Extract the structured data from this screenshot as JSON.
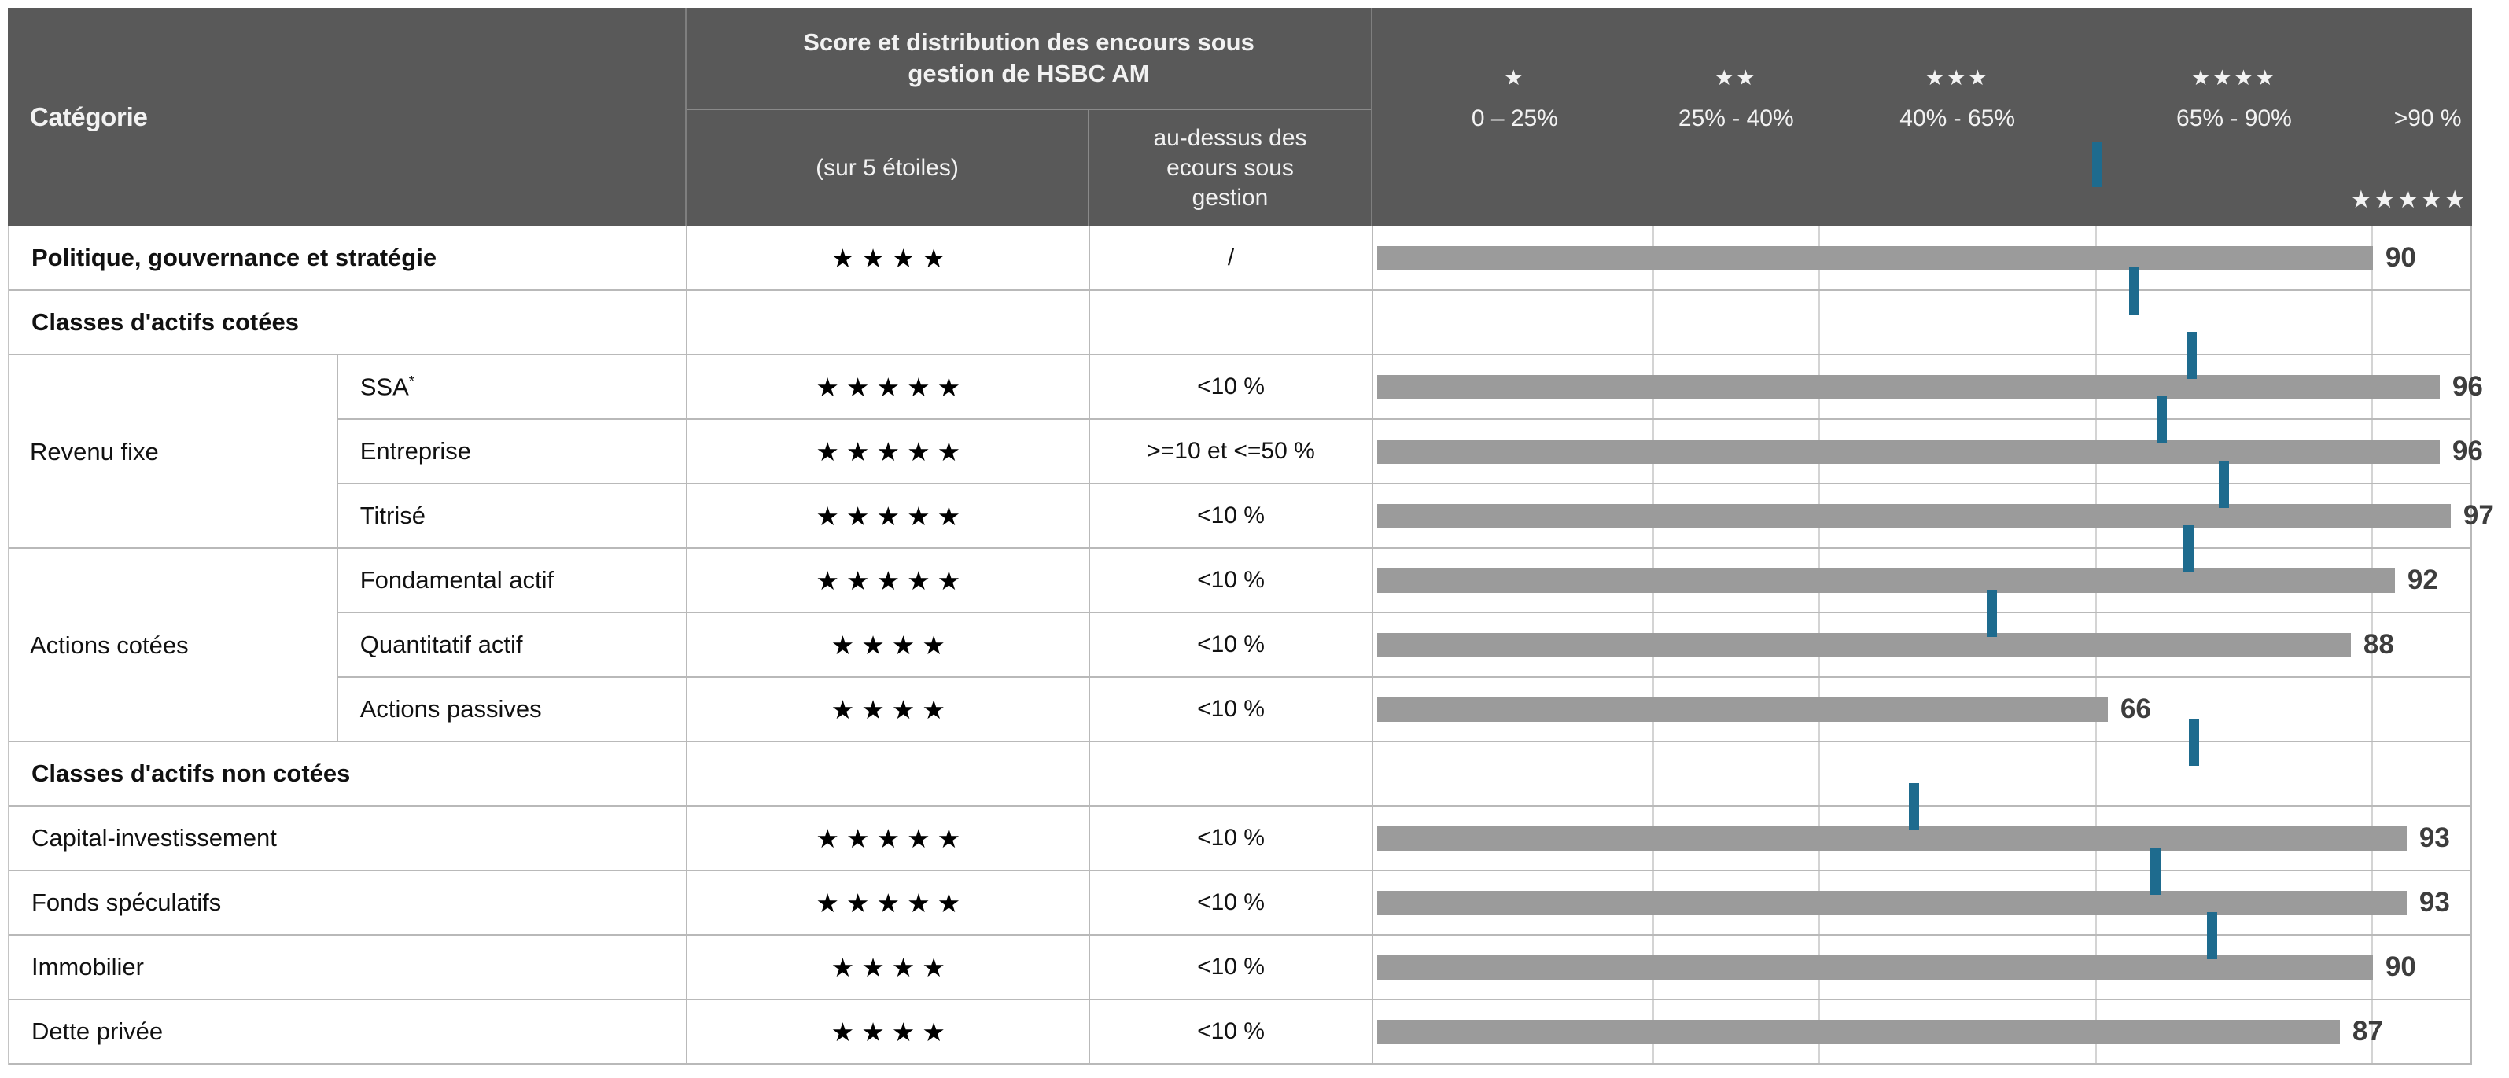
{
  "header": {
    "category_label": "Catégorie",
    "score_title_lines": [
      "Score et distribution des encours sous",
      "gestion de HSBC AM"
    ],
    "score_sub_label": "(sur 5 étoiles)",
    "aum_sub_lines": [
      "au-dessus des",
      "ecours sous",
      "gestion"
    ]
  },
  "scale": {
    "axis_min": 0,
    "axis_max": 100,
    "bands": [
      {
        "stars": 1,
        "label": "0 – 25%",
        "from": 0,
        "to": 25
      },
      {
        "stars": 2,
        "label": "25% - 40%",
        "from": 25,
        "to": 40
      },
      {
        "stars": 3,
        "label": "40% - 65%",
        "from": 40,
        "to": 65
      },
      {
        "stars": 4,
        "label": "65% - 90%",
        "from": 65,
        "to": 90
      },
      {
        "stars": 5,
        "label": ">90 %",
        "from": 90,
        "to": 100,
        "stars_bottom_right": true
      }
    ],
    "header_tick_percent": 65.1
  },
  "rows": [
    {
      "kind": "data",
      "bold": true,
      "label": "Politique, gouvernance et stratégie",
      "stars": 4,
      "aum": "/",
      "score": 90
    },
    {
      "kind": "section",
      "label": "Classes d'actifs cotées"
    },
    {
      "kind": "data",
      "group": "Revenu fixe",
      "label": "SSA",
      "label_sup": "*",
      "stars": 5,
      "aum": "<10 %",
      "score": 96
    },
    {
      "kind": "data",
      "group": "Revenu fixe",
      "label": "Entreprise",
      "stars": 5,
      "aum": ">=10 et <=50 %",
      "score": 96
    },
    {
      "kind": "data",
      "group": "Revenu fixe",
      "label": "Titrisé",
      "stars": 5,
      "aum": "<10 %",
      "score": 97
    },
    {
      "kind": "data",
      "group": "Actions cotées",
      "label": "Fondamental actif",
      "stars": 5,
      "aum": "<10 %",
      "score": 92
    },
    {
      "kind": "data",
      "group": "Actions cotées",
      "label": "Quantitatif actif",
      "stars": 4,
      "aum": "<10 %",
      "score": 88
    },
    {
      "kind": "data",
      "group": "Actions cotées",
      "label": "Actions passives",
      "stars": 4,
      "aum": "<10 %",
      "score": 66
    },
    {
      "kind": "section",
      "label": "Classes d'actifs non cotées"
    },
    {
      "kind": "data",
      "label": "Capital-investissement",
      "stars": 5,
      "aum": "<10 %",
      "score": 93
    },
    {
      "kind": "data",
      "label": "Fonds spéculatifs",
      "stars": 5,
      "aum": "<10 %",
      "score": 93
    },
    {
      "kind": "data",
      "label": "Immobilier",
      "stars": 4,
      "aum": "<10 %",
      "score": 90
    },
    {
      "kind": "data",
      "label": "Dette privée",
      "stars": 4,
      "aum": "<10 %",
      "score": 87
    }
  ],
  "median_ticks": [
    {
      "boundary_after_row": 1,
      "percent": 68.5
    },
    {
      "boundary_after_row": 2,
      "percent": 73.7
    },
    {
      "boundary_after_row": 3,
      "percent": 71.0
    },
    {
      "boundary_after_row": 4,
      "percent": 76.6
    },
    {
      "boundary_after_row": 5,
      "percent": 73.4
    },
    {
      "boundary_after_row": 6,
      "percent": 55.6
    },
    {
      "boundary_after_row": 8,
      "percent": 73.9
    },
    {
      "boundary_after_row": 9,
      "percent": 48.6
    },
    {
      "boundary_after_row": 10,
      "percent": 70.4
    },
    {
      "boundary_after_row": 11,
      "percent": 75.5
    }
  ],
  "colors": {
    "header_bg": "#595959",
    "header_text": "#f2f2f2",
    "body_text": "#111111",
    "bar": "#9b9b9b",
    "median_tick": "#1e6b8e",
    "border": "#b9b9b9",
    "gridline": "#d4d4d4",
    "value_text": "#3d3d3d"
  },
  "chart_data": {
    "type": "bar",
    "orientation": "horizontal",
    "title": "Score et distribution des encours sous gestion de HSBC AM",
    "categories": [
      "Politique, gouvernance et stratégie",
      "SSA",
      "Entreprise",
      "Titrisé",
      "Fondamental actif",
      "Quantitatif actif",
      "Actions passives",
      "Capital-investissement",
      "Fonds spéculatifs",
      "Immobilier",
      "Dette privée"
    ],
    "values": [
      90,
      96,
      96,
      97,
      92,
      88,
      66,
      93,
      93,
      90,
      87
    ],
    "star_ratings": [
      4,
      5,
      5,
      5,
      5,
      4,
      4,
      5,
      5,
      4,
      4
    ],
    "xlim": [
      0,
      100
    ],
    "grid_percents": [
      25,
      40,
      65,
      90
    ],
    "scale_band_labels": [
      "0 – 25%",
      "25% - 40%",
      "40% - 65%",
      "65% - 90%",
      ">90 %"
    ],
    "median_tick_percents": [
      65.1,
      68.5,
      73.7,
      71.0,
      76.6,
      73.4,
      55.6,
      73.9,
      48.6,
      70.4,
      75.5
    ],
    "legend_position": "header",
    "grid": true
  }
}
